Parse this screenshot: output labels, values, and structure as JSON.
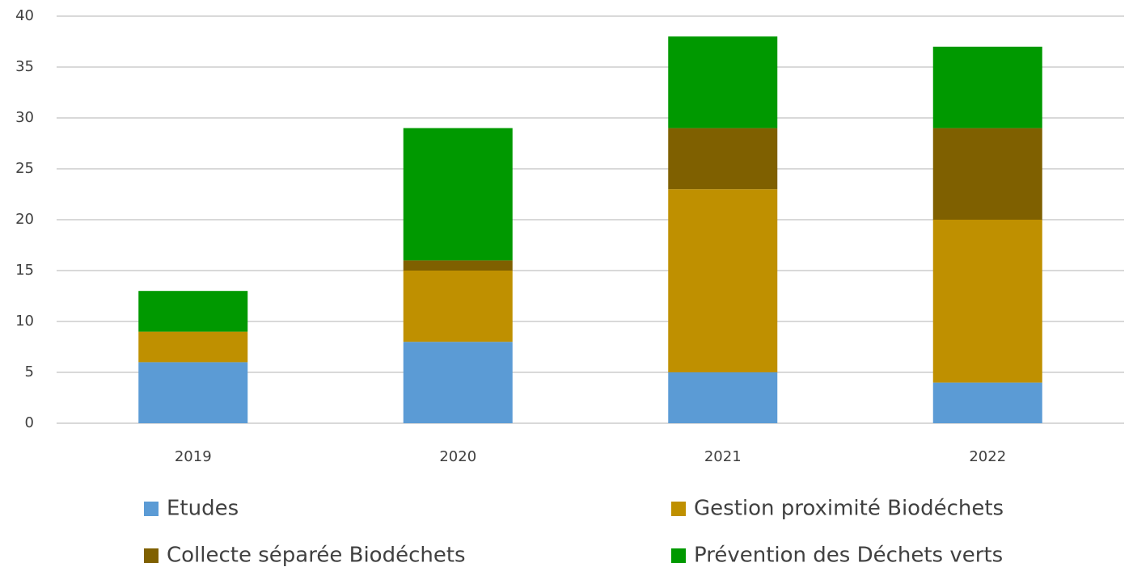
{
  "chart_data": {
    "type": "stacked_bar",
    "categories": [
      "2019",
      "2020",
      "2021",
      "2022"
    ],
    "series": [
      {
        "name": "Etudes",
        "color": "#5b9bd5",
        "values": [
          6,
          8,
          5,
          4
        ]
      },
      {
        "name": "Gestion proximité Biodéchets",
        "color": "#bf9000",
        "values": [
          3,
          7,
          18,
          16
        ]
      },
      {
        "name": "Collecte séparée Biodéchets",
        "color": "#7f6000",
        "values": [
          0,
          1,
          6,
          9
        ]
      },
      {
        "name": "Prévention des Déchets verts",
        "color": "#009900",
        "values": [
          4,
          13,
          9,
          8
        ]
      }
    ],
    "ylim": [
      0,
      40
    ],
    "yticks": [
      0,
      5,
      10,
      15,
      20,
      25,
      30,
      35,
      40
    ],
    "grid": true,
    "legend": "bottom"
  }
}
